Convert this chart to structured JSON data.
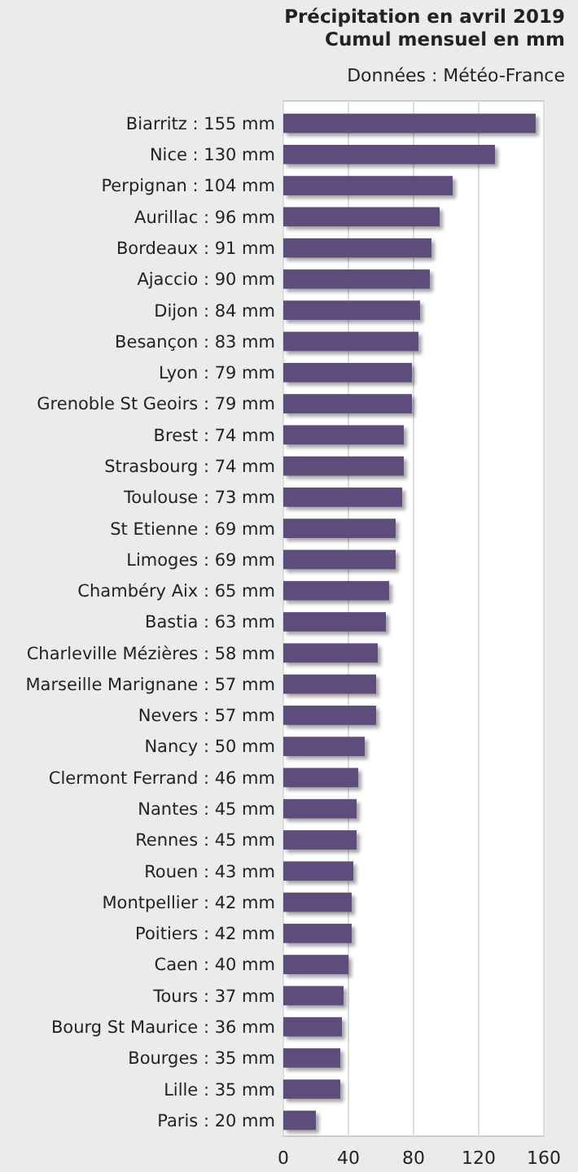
{
  "chart_data": {
    "type": "bar",
    "orientation": "horizontal",
    "title": "Précipitation en avril 2019",
    "subtitle": "Cumul mensuel en mm",
    "annotations": [
      "Données : Météo-France"
    ],
    "categories": [
      "Biarritz : 155 mm",
      "Nice : 130 mm",
      "Perpignan : 104 mm",
      "Aurillac : 96 mm",
      "Bordeaux : 91 mm",
      "Ajaccio : 90 mm",
      "Dijon : 84 mm",
      "Besançon : 83 mm",
      "Lyon : 79 mm",
      "Grenoble St Geoirs : 79 mm",
      "Brest : 74 mm",
      "Strasbourg : 74 mm",
      "Toulouse : 73 mm",
      "St Etienne : 69 mm",
      "Limoges : 69 mm",
      "Chambéry Aix : 65 mm",
      "Bastia : 63 mm",
      "Charleville Mézières : 58 mm",
      "Marseille Marignane : 57 mm",
      "Nevers : 57 mm",
      "Nancy : 50 mm",
      "Clermont Ferrand : 46 mm",
      "Nantes : 45 mm",
      "Rennes : 45 mm",
      "Rouen : 43 mm",
      "Montpellier : 42 mm",
      "Poitiers : 42 mm",
      "Caen : 40 mm",
      "Tours : 37 mm",
      "Bourg St Maurice : 36 mm",
      "Bourges : 35 mm",
      "Lille : 35 mm",
      "Paris : 20 mm"
    ],
    "values": [
      155,
      130,
      104,
      96,
      91,
      90,
      84,
      83,
      79,
      79,
      74,
      74,
      73,
      69,
      69,
      65,
      63,
      58,
      57,
      57,
      50,
      46,
      45,
      45,
      43,
      42,
      42,
      40,
      37,
      36,
      35,
      35,
      20
    ],
    "color": "#5e4d7c",
    "xlim": [
      0,
      160
    ],
    "xticks": [
      0,
      40,
      80,
      120,
      160
    ],
    "grid": "x"
  }
}
